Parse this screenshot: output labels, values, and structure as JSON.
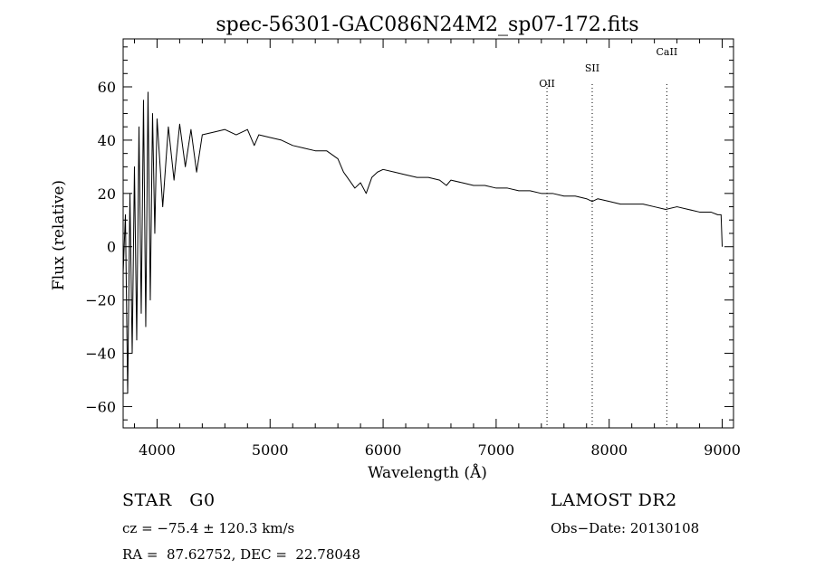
{
  "chart_data": {
    "type": "line",
    "title": "spec-56301-GAC086N24M2_sp07-172.fits",
    "xlabel": "Wavelength (Å)",
    "ylabel": "Flux (relative)",
    "xlim": [
      3700,
      9100
    ],
    "ylim": [
      -68,
      78
    ],
    "xticks": [
      4000,
      5000,
      6000,
      7000,
      8000,
      9000
    ],
    "yticks": [
      -60,
      -40,
      -20,
      0,
      20,
      40,
      60
    ],
    "grid": false,
    "series": [
      {
        "x": [
          3700,
          3720,
          3740,
          3760,
          3780,
          3800,
          3820,
          3840,
          3860,
          3880,
          3900,
          3920,
          3940,
          3960,
          3980,
          4000,
          4050,
          4100,
          4150,
          4200,
          4250,
          4300,
          4350,
          4400,
          4500,
          4600,
          4700,
          4800,
          4860,
          4900,
          5000,
          5100,
          5200,
          5300,
          5400,
          5500,
          5600,
          5650,
          5700,
          5750,
          5800,
          5850,
          5900,
          5950,
          6000,
          6100,
          6200,
          6300,
          6400,
          6500,
          6560,
          6600,
          6700,
          6800,
          6900,
          7000,
          7100,
          7200,
          7300,
          7400,
          7500,
          7600,
          7700,
          7800,
          7850,
          7900,
          8000,
          8100,
          8200,
          8300,
          8400,
          8500,
          8600,
          8700,
          8800,
          8900,
          8960,
          8990,
          9000
        ],
        "y": [
          -10,
          12,
          -55,
          20,
          -40,
          30,
          -35,
          45,
          -25,
          55,
          -30,
          58,
          -20,
          50,
          5,
          48,
          15,
          45,
          25,
          46,
          30,
          44,
          28,
          42,
          43,
          44,
          42,
          44,
          38,
          42,
          41,
          40,
          38,
          37,
          36,
          36,
          33,
          28,
          25,
          22,
          24,
          20,
          26,
          28,
          29,
          28,
          27,
          26,
          26,
          25,
          23,
          25,
          24,
          23,
          23,
          22,
          22,
          21,
          21,
          20,
          20,
          19,
          19,
          18,
          17,
          18,
          17,
          16,
          16,
          16,
          15,
          14,
          15,
          14,
          13,
          13,
          12,
          12,
          0
        ]
      }
    ],
    "annotations": [
      {
        "label": "OII",
        "x": 7450
      },
      {
        "label": "SII",
        "x": 7850
      },
      {
        "label": "CaII",
        "x": 8510
      }
    ]
  },
  "info": {
    "object_line": "STAR   G0",
    "cz_line": "cz = −75.4 ± 120.3 km/s",
    "radec_line": "RA =  87.62752, DEC =  22.78048",
    "survey": "LAMOST DR2",
    "obs_date": "Obs−Date: 20130108"
  }
}
